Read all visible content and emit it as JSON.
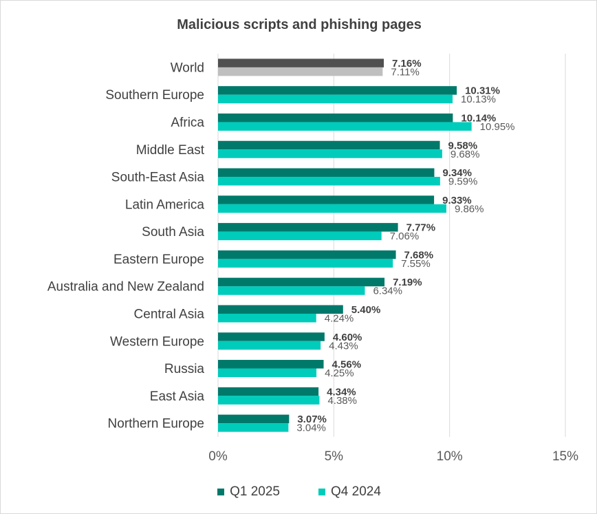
{
  "chart_data": {
    "type": "bar",
    "orientation": "horizontal",
    "title": "Malicious scripts and phishing pages",
    "categories": [
      "World",
      "Southern Europe",
      "Africa",
      "Middle East",
      "South-East Asia",
      "Latin America",
      "South Asia",
      "Eastern Europe",
      "Australia and New Zealand",
      "Central Asia",
      "Western Europe",
      "Russia",
      "East Asia",
      "Northern Europe"
    ],
    "series": [
      {
        "name": "Q1 2025",
        "color": "#00796b",
        "highlight_color": "#505050",
        "values": [
          7.16,
          10.31,
          10.14,
          9.58,
          9.34,
          9.33,
          7.77,
          7.68,
          7.19,
          5.4,
          4.6,
          4.56,
          4.34,
          3.07
        ],
        "labels": [
          "7.16%",
          "10.31%",
          "10.14%",
          "9.58%",
          "9.34%",
          "9.33%",
          "7.77%",
          "7.68%",
          "7.19%",
          "5.40%",
          "4.60%",
          "4.56%",
          "4.34%",
          "3.07%"
        ]
      },
      {
        "name": "Q4 2024",
        "color": "#00ccbb",
        "highlight_color": "#bfbfbf",
        "values": [
          7.11,
          10.13,
          10.95,
          9.68,
          9.59,
          9.86,
          7.06,
          7.55,
          6.34,
          4.24,
          4.43,
          4.25,
          4.38,
          3.04
        ],
        "labels": [
          "7.11%",
          "10.13%",
          "10.95%",
          "9.68%",
          "9.59%",
          "9.86%",
          "7.06%",
          "7.55%",
          "6.34%",
          "4.24%",
          "4.43%",
          "4.25%",
          "4.38%",
          "3.04%"
        ]
      }
    ],
    "xlim": [
      0,
      15
    ],
    "x_ticks": [
      0,
      5,
      10,
      15
    ],
    "x_tick_labels": [
      "0%",
      "5%",
      "10%",
      "15%"
    ],
    "grid": "vertical",
    "legend_position": "bottom"
  }
}
